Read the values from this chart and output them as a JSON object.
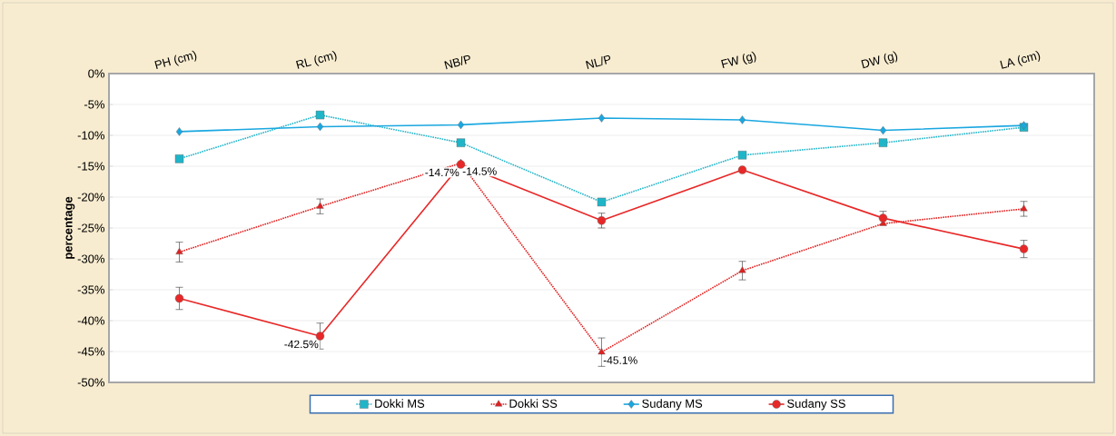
{
  "chart_data": {
    "type": "line",
    "ylabel": "percentage",
    "categories": [
      "PH (cm)",
      "RL (cm)",
      "NB/P",
      "NL/P",
      "FW (g)",
      "DW (g)",
      "LA (cm)"
    ],
    "ylim": [
      -50,
      0
    ],
    "yticks": [
      {
        "value": -50,
        "label": "-50%"
      },
      {
        "value": -45,
        "label": "-45%"
      },
      {
        "value": -40,
        "label": "-40%"
      },
      {
        "value": -35,
        "label": "-35%"
      },
      {
        "value": -30,
        "label": "-30%"
      },
      {
        "value": -25,
        "label": "-25%"
      },
      {
        "value": -20,
        "label": "-20%"
      },
      {
        "value": -15,
        "label": "-15%"
      },
      {
        "value": -10,
        "label": "-10%"
      },
      {
        "value": -5,
        "label": "-5%"
      },
      {
        "value": 0,
        "label": "0%"
      }
    ],
    "grid": "y",
    "legend": "bottom",
    "series": [
      {
        "name": "Dokki MS",
        "color": "#1fb5c9",
        "line_style": "dotted",
        "marker": "square",
        "values": [
          -13.8,
          -6.7,
          -11.2,
          -20.8,
          -13.2,
          -11.2,
          -8.7
        ]
      },
      {
        "name": "Dokki SS",
        "color": "#e02020",
        "line_style": "dotted",
        "marker": "triangle",
        "values": [
          -28.9,
          -21.5,
          -14.5,
          -45.1,
          -31.9,
          -24.3,
          -21.9
        ],
        "errors": [
          1.6,
          1.2,
          null,
          2.3,
          1.5,
          null,
          1.2
        ],
        "value_labels": [
          null,
          null,
          "-14.5%",
          "-45.1%",
          null,
          null,
          null
        ]
      },
      {
        "name": "Sudany MS",
        "color": "#1aa7e0",
        "line_style": "solid",
        "marker": "diamond",
        "values": [
          -9.4,
          -8.6,
          -8.3,
          -7.2,
          -7.5,
          -9.2,
          -8.4
        ]
      },
      {
        "name": "Sudany SS",
        "color": "#e82828",
        "line_style": "solid",
        "marker": "circle",
        "values": [
          -36.4,
          -42.5,
          -14.7,
          -23.8,
          -15.6,
          -23.4,
          -28.4
        ],
        "errors": [
          1.8,
          2.1,
          null,
          1.2,
          null,
          1.1,
          1.4
        ],
        "value_labels": [
          null,
          "-42.5%",
          "-14.7%",
          null,
          null,
          null,
          null
        ]
      }
    ]
  }
}
